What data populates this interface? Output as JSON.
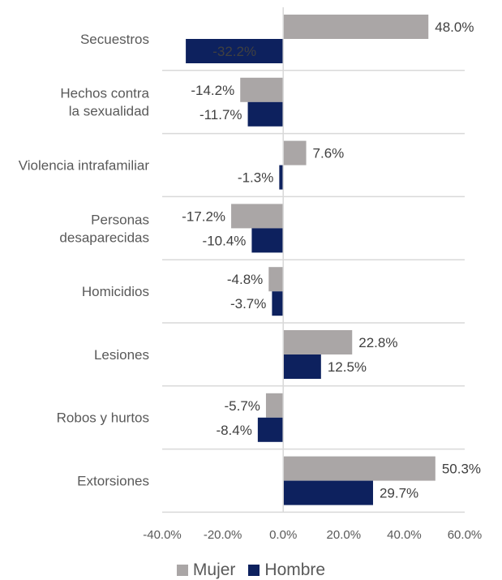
{
  "chart_data": {
    "type": "bar",
    "orientation": "horizontal",
    "categories": [
      "Secuestros",
      "Hechos contra la sexualidad",
      "Violencia intrafamiliar",
      "Personas desaparecidas",
      "Homicidios",
      "Lesiones",
      "Robos y hurtos",
      "Extorsiones"
    ],
    "category_lines": [
      [
        "Secuestros"
      ],
      [
        "Hechos contra",
        "la sexualidad"
      ],
      [
        "Violencia intrafamiliar"
      ],
      [
        "Personas",
        "desaparecidas"
      ],
      [
        "Homicidios"
      ],
      [
        "Lesiones"
      ],
      [
        "Robos y hurtos"
      ],
      [
        "Extorsiones"
      ]
    ],
    "series": [
      {
        "name": "Mujer",
        "color": "#aaa6a6",
        "values": [
          48.0,
          -14.2,
          7.6,
          -17.2,
          -4.8,
          22.8,
          -5.7,
          50.3
        ],
        "labels": [
          "48.0%",
          "-14.2%",
          "7.6%",
          "-17.2%",
          "-4.8%",
          "22.8%",
          "-5.7%",
          "50.3%"
        ]
      },
      {
        "name": "Hombre",
        "color": "#0d215e",
        "values": [
          -32.2,
          -11.7,
          -1.3,
          -10.4,
          -3.7,
          12.5,
          -8.4,
          29.7
        ],
        "labels": [
          "-32.2%",
          "-11.7%",
          "-1.3%",
          "-10.4%",
          "-3.7%",
          "12.5%",
          "-8.4%",
          "29.7%"
        ]
      }
    ],
    "xlim": [
      -40,
      60
    ],
    "xticks": [
      -40,
      -20,
      0,
      20,
      40,
      60
    ],
    "xtick_labels": [
      "-40.0%",
      "-20.0%",
      "0.0%",
      "20.0%",
      "40.0%",
      "60.0%"
    ],
    "grid": "horizontal separators between categories",
    "legend_position": "bottom",
    "title": "",
    "xlabel": "",
    "ylabel": ""
  },
  "legend": {
    "items": [
      {
        "label": "Mujer",
        "color": "#aaa6a6"
      },
      {
        "label": "Hombre",
        "color": "#0d215e"
      }
    ]
  }
}
